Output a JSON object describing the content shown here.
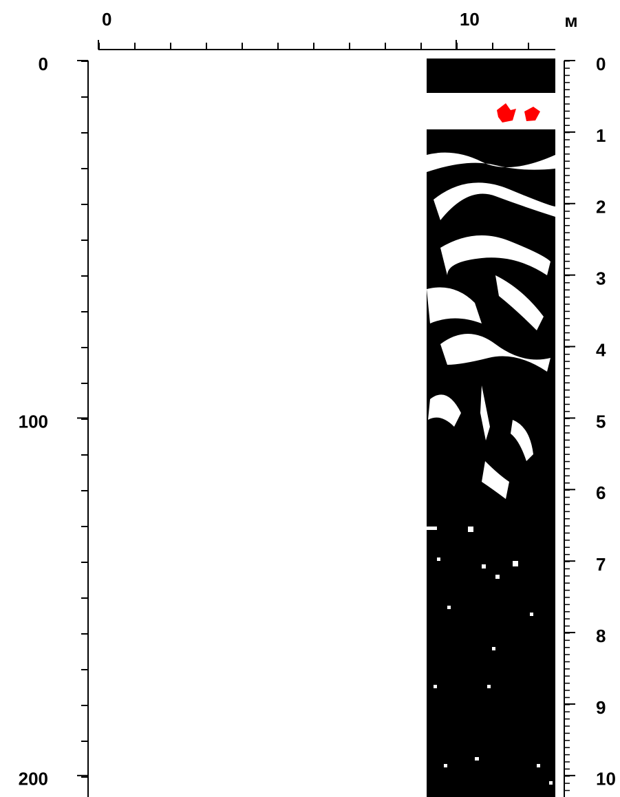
{
  "chart_data": {
    "type": "radargram",
    "x_unit": "м",
    "xlim": [
      0,
      12.77
    ],
    "xticks": [
      0,
      10
    ],
    "ylim": [
      0,
      206
    ],
    "yticks": [
      0,
      100,
      200
    ],
    "y2lim": [
      0,
      10.3
    ],
    "y2ticks": [
      0,
      1,
      2,
      3,
      4,
      5,
      6,
      7,
      8,
      9,
      10
    ]
  }
}
